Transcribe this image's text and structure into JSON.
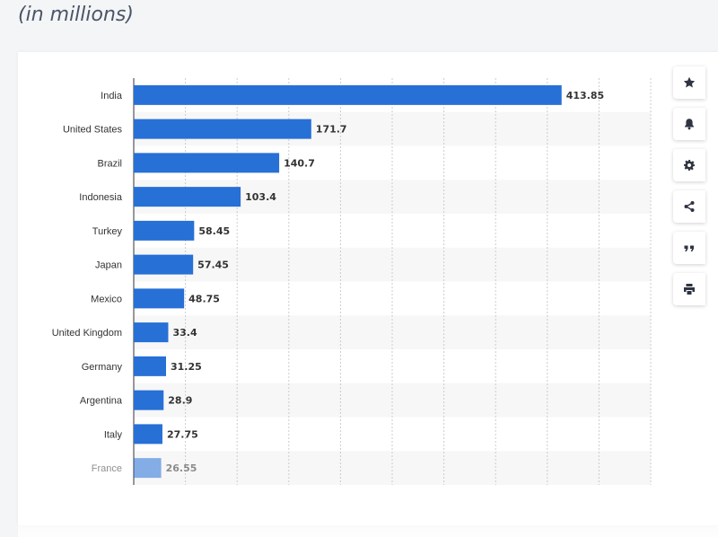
{
  "header": {
    "subtitle": "(in millions)"
  },
  "toolbar": {
    "buttons": [
      {
        "icon": "star-icon",
        "name": "favorite-button"
      },
      {
        "icon": "bell-icon",
        "name": "notification-button"
      },
      {
        "icon": "gear-icon",
        "name": "settings-button"
      },
      {
        "icon": "share-icon",
        "name": "share-button"
      },
      {
        "icon": "quote-icon",
        "name": "cite-button"
      },
      {
        "icon": "print-icon",
        "name": "print-button"
      }
    ]
  },
  "colors": {
    "bar": "#2770d6",
    "stripe": "#f7f7f8",
    "grid": "#cccccc",
    "axis": "#333333"
  },
  "chart_data": {
    "type": "bar",
    "orientation": "horizontal",
    "categories": [
      "India",
      "United States",
      "Brazil",
      "Indonesia",
      "Turkey",
      "Japan",
      "Mexico",
      "United Kingdom",
      "Germany",
      "Argentina",
      "Italy",
      "France"
    ],
    "values": [
      413.85,
      171.7,
      140.7,
      103.4,
      58.45,
      57.45,
      48.75,
      33.4,
      31.25,
      28.9,
      27.75,
      26.55
    ],
    "value_labels": [
      "413.85",
      "171.7",
      "140.7",
      "103.4",
      "58.45",
      "57.45",
      "48.75",
      "33.4",
      "31.25",
      "28.9",
      "27.75",
      "26.55"
    ],
    "xlim": [
      0,
      500
    ],
    "grid": true,
    "legend": "none"
  }
}
